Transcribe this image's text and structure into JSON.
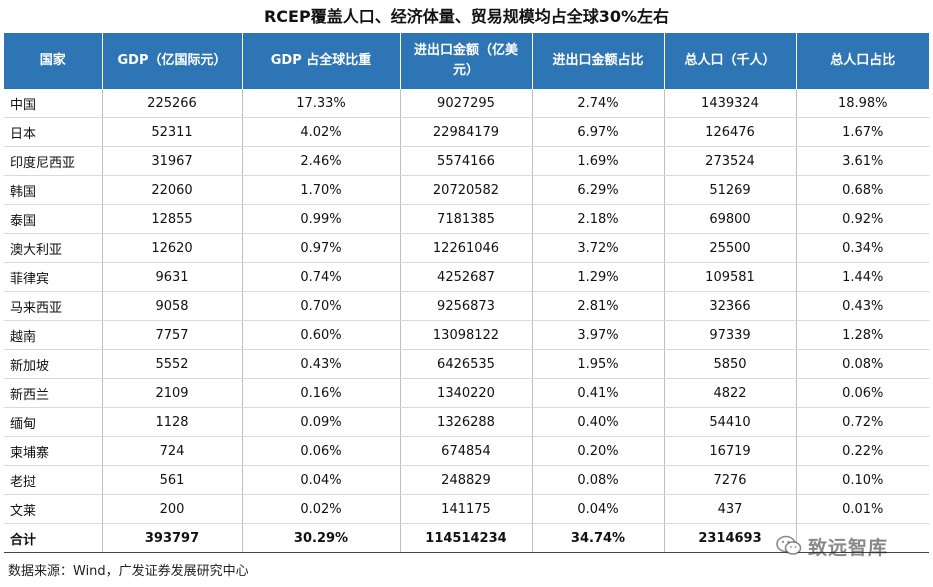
{
  "title": "RCEP覆盖人口、经济体量、贸易规模均占全球30%左右",
  "headers": [
    "国家",
    "GDP（亿国际元）",
    "GDP 占全球比重",
    "进出口金额（亿美元）",
    "进出口金额占比",
    "总人口（千人）",
    "总人口占比"
  ],
  "rows": [
    [
      "中国",
      "225266",
      "17.33%",
      "9027295",
      "2.74%",
      "1439324",
      "18.98%"
    ],
    [
      "日本",
      "52311",
      "4.02%",
      "22984179",
      "6.97%",
      "126476",
      "1.67%"
    ],
    [
      "印度尼西亚",
      "31967",
      "2.46%",
      "5574166",
      "1.69%",
      "273524",
      "3.61%"
    ],
    [
      "韩国",
      "22060",
      "1.70%",
      "20720582",
      "6.29%",
      "51269",
      "0.68%"
    ],
    [
      "泰国",
      "12855",
      "0.99%",
      "7181385",
      "2.18%",
      "69800",
      "0.92%"
    ],
    [
      "澳大利亚",
      "12620",
      "0.97%",
      "12261046",
      "3.72%",
      "25500",
      "0.34%"
    ],
    [
      "菲律宾",
      "9631",
      "0.74%",
      "4252687",
      "1.29%",
      "109581",
      "1.44%"
    ],
    [
      "马来西亚",
      "9058",
      "0.70%",
      "9256873",
      "2.81%",
      "32366",
      "0.43%"
    ],
    [
      "越南",
      "7757",
      "0.60%",
      "13098122",
      "3.97%",
      "97339",
      "1.28%"
    ],
    [
      "新加坡",
      "5552",
      "0.43%",
      "6426535",
      "1.95%",
      "5850",
      "0.08%"
    ],
    [
      "新西兰",
      "2109",
      "0.16%",
      "1340220",
      "0.41%",
      "4822",
      "0.06%"
    ],
    [
      "缅甸",
      "1128",
      "0.09%",
      "1326288",
      "0.40%",
      "54410",
      "0.72%"
    ],
    [
      "柬埔寨",
      "724",
      "0.06%",
      "674854",
      "0.20%",
      "16719",
      "0.22%"
    ],
    [
      "老挝",
      "561",
      "0.04%",
      "248829",
      "0.08%",
      "7276",
      "0.10%"
    ],
    [
      "文莱",
      "200",
      "0.02%",
      "141175",
      "0.04%",
      "437",
      "0.01%"
    ]
  ],
  "total": [
    "合计",
    "393797",
    "30.29%",
    "114514234",
    "34.74%",
    "2314693",
    ""
  ],
  "source": "数据来源：Wind，广发证券发展研究中心",
  "watermark": "致远智库",
  "colors": {
    "header_bg": "#2e75b6",
    "header_text": "#ffffff"
  }
}
